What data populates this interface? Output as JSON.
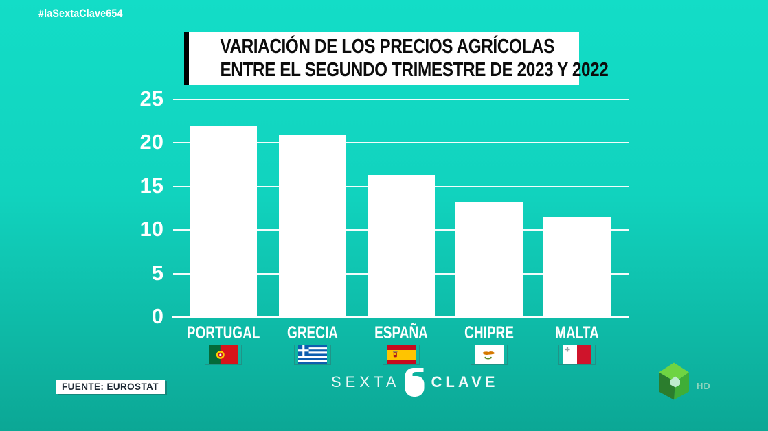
{
  "meta": {
    "hashtag": "#laSextaClave654",
    "source_label": "FUENTE: EUROSTAT",
    "show_logo": {
      "left_word": "SEXTA",
      "right_word": "CLAVE"
    },
    "channel": {
      "name": "laSexta",
      "hd_label": "HD"
    }
  },
  "colors": {
    "background_top": "#13ddc7",
    "background_bottom": "#0ca795",
    "bar": "#ffffff",
    "title_text": "#0c0c0c",
    "axis_text": "#ffffff",
    "logo_green_light": "#6fd442",
    "logo_green_mid": "#3fae37",
    "logo_green_dark": "#2b7d2d"
  },
  "chart_data": {
    "type": "bar",
    "title": "VARIACIÓN DE LOS PRECIOS AGRÍCOLAS ENTRE EL SEGUNDO TRIMESTRE DE 2023 Y 2022",
    "title_lines": [
      "VARIACIÓN DE LOS PRECIOS AGRÍCOLAS",
      "ENTRE EL SEGUNDO TRIMESTRE DE 2023 Y 2022"
    ],
    "categories": [
      "PORTUGAL",
      "GRECIA",
      "ESPAÑA",
      "CHIPRE",
      "MALTA"
    ],
    "values": [
      22,
      21,
      16.3,
      13.2,
      11.5
    ],
    "flags": [
      "pt",
      "gr",
      "es",
      "cy",
      "mt"
    ],
    "xlabel": "",
    "ylabel": "",
    "ylim": [
      0,
      25
    ],
    "yticks": [
      0,
      5,
      10,
      15,
      20,
      25
    ],
    "grid": true,
    "legend": false,
    "bar_color": "#ffffff"
  }
}
